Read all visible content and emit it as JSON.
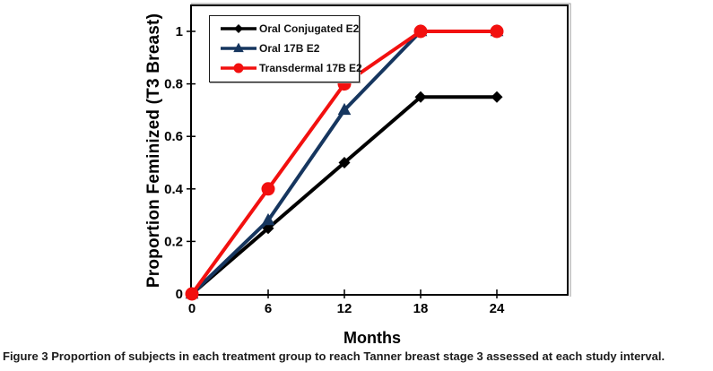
{
  "figure": {
    "caption_label": "Figure 3",
    "caption_text": "Proportion of subjects in each treatment group to reach Tanner breast stage 3 assessed at each study interval."
  },
  "chart_data": {
    "type": "line",
    "title": "",
    "xlabel": "Months",
    "ylabel": "Proportion Feminized (T3 Breast)",
    "x": [
      0,
      6,
      12,
      18,
      24
    ],
    "x_ticks": [
      0,
      6,
      12,
      18,
      24
    ],
    "x_tick_labels": [
      "0",
      "6",
      "12",
      "18",
      "24"
    ],
    "xlim": [
      0,
      29.6
    ],
    "y_ticks": [
      0,
      0.2,
      0.4,
      0.6,
      0.8,
      1
    ],
    "y_tick_labels": [
      "0",
      "0.2",
      "0.4",
      "0.6",
      "0.8",
      "1"
    ],
    "ylim": [
      0,
      1.1
    ],
    "grid": false,
    "legend_position": "top-left-inside",
    "series": [
      {
        "name": "Oral Conjugated E2",
        "color": "#000000",
        "marker": "diamond",
        "values": [
          0,
          0.25,
          0.5,
          0.75,
          0.75
        ]
      },
      {
        "name": "Oral 17B E2",
        "color": "#16365F",
        "marker": "triangle",
        "values": [
          0,
          0.28,
          0.7,
          1,
          1
        ]
      },
      {
        "name": "Transdermal 17B E2",
        "color": "#F2100F",
        "marker": "circle",
        "values": [
          0,
          0.4,
          0.8,
          1,
          1
        ]
      }
    ]
  }
}
